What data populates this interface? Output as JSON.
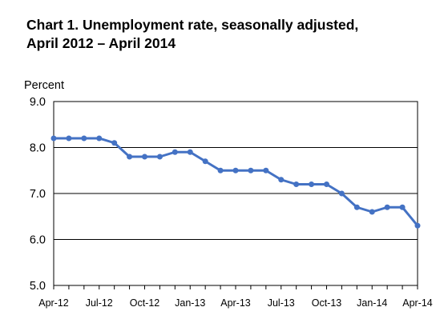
{
  "chart_data": {
    "type": "line",
    "title_lines": [
      "Chart 1. Unemployment rate, seasonally adjusted,",
      "April 2012 – April 2014"
    ],
    "ylabel": "Percent",
    "xlabel": "",
    "ylim": [
      5.0,
      9.0
    ],
    "yticks": [
      "5.0",
      "6.0",
      "7.0",
      "8.0",
      "9.0"
    ],
    "xtick_labels": [
      "Apr-12",
      "Jul-12",
      "Oct-12",
      "Jan-13",
      "Apr-13",
      "Jul-13",
      "Oct-13",
      "Jan-14",
      "Apr-14"
    ],
    "x": [
      "Apr-12",
      "May-12",
      "Jun-12",
      "Jul-12",
      "Aug-12",
      "Sep-12",
      "Oct-12",
      "Nov-12",
      "Dec-12",
      "Jan-13",
      "Feb-13",
      "Mar-13",
      "Apr-13",
      "May-13",
      "Jun-13",
      "Jul-13",
      "Aug-13",
      "Sep-13",
      "Oct-13",
      "Nov-13",
      "Dec-13",
      "Jan-14",
      "Feb-14",
      "Mar-14",
      "Apr-14"
    ],
    "series": [
      {
        "values": [
          8.2,
          8.2,
          8.2,
          8.2,
          8.1,
          7.8,
          7.8,
          7.8,
          7.9,
          7.9,
          7.7,
          7.5,
          7.5,
          7.5,
          7.5,
          7.3,
          7.2,
          7.2,
          7.2,
          7.0,
          6.7,
          6.6,
          6.7,
          6.7,
          6.3
        ],
        "color": "#4472c4"
      }
    ],
    "grid": true,
    "legend": "none"
  }
}
